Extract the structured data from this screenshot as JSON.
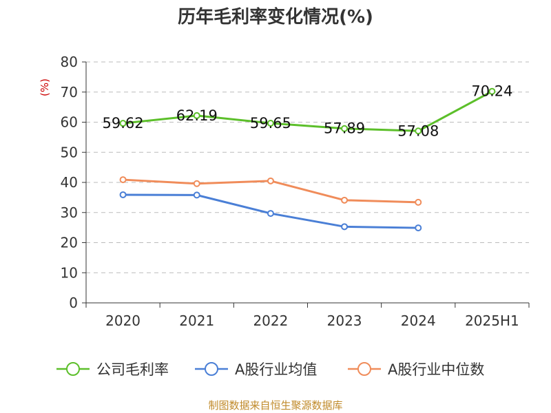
{
  "colors": {
    "axis": "#333333",
    "grid": "#bbbbbb",
    "source": "#c08a2a",
    "ylabel": "#cc0000"
  },
  "chart_data": {
    "type": "line",
    "title": "历年毛利率变化情况(%)",
    "ylabel": "(%)",
    "xlabel": "",
    "categories": [
      "2020",
      "2021",
      "2022",
      "2023",
      "2024",
      "2025H1"
    ],
    "ylim": [
      0,
      80
    ],
    "yticks": [
      0,
      10,
      20,
      30,
      40,
      50,
      60,
      70,
      80
    ],
    "grid": "horizontal-dashed",
    "legend_position": "bottom",
    "series": [
      {
        "name": "公司毛利率",
        "color": "#5cbf2a",
        "values": [
          59.62,
          62.19,
          59.65,
          57.89,
          57.08,
          70.24
        ],
        "labels": [
          "59.62",
          "62.19",
          "59.65",
          "57.89",
          "57.08",
          "70.24"
        ]
      },
      {
        "name": "A股行业均值",
        "color": "#4a7fd6",
        "values": [
          35.9,
          35.8,
          29.7,
          25.3,
          24.9,
          null
        ]
      },
      {
        "name": "A股行业中位数",
        "color": "#f08c5a",
        "values": [
          40.9,
          39.6,
          40.5,
          34.1,
          33.4,
          null
        ]
      }
    ],
    "source": "制图数据来自恒生聚源数据库"
  }
}
